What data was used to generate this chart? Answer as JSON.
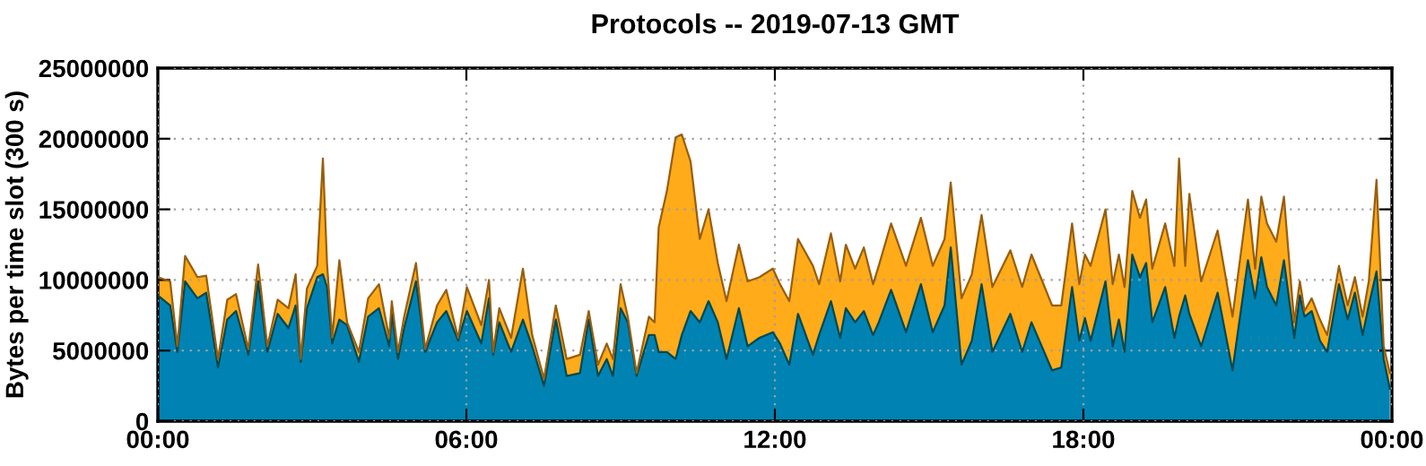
{
  "chart_data": {
    "type": "area",
    "stacked": true,
    "title": "Protocols -- 2019-07-13 GMT",
    "ylabel": "Bytes per time slot (300 s)",
    "x": [
      0,
      0.24,
      0.38,
      0.53,
      0.77,
      0.94,
      1.17,
      1.35,
      1.52,
      1.76,
      1.95,
      2.13,
      2.33,
      2.54,
      2.68,
      2.78,
      2.9,
      3.1,
      3.21,
      3.29,
      3.39,
      3.53,
      3.68,
      3.91,
      4.09,
      4.3,
      4.5,
      4.55,
      4.67,
      4.79,
      5.02,
      5.2,
      5.43,
      5.61,
      5.84,
      6.01,
      6.29,
      6.44,
      6.52,
      6.64,
      6.87,
      7.1,
      7.28,
      7.51,
      7.74,
      7.95,
      8.21,
      8.38,
      8.56,
      8.73,
      8.85,
      9.0,
      9.14,
      9.31,
      9.55,
      9.66,
      9.74,
      9.9,
      10.07,
      10.19,
      10.36,
      10.54,
      10.71,
      10.89,
      11.06,
      11.3,
      11.47,
      11.7,
      11.96,
      12.1,
      12.28,
      12.45,
      12.74,
      12.86,
      13.09,
      13.27,
      13.38,
      13.56,
      13.73,
      13.91,
      14.02,
      14.26,
      14.55,
      14.84,
      15.07,
      15.3,
      15.42,
      15.63,
      15.83,
      16.02,
      16.23,
      16.58,
      16.81,
      16.99,
      17.39,
      17.57,
      17.78,
      17.92,
      18.03,
      18.14,
      18.43,
      18.57,
      18.69,
      18.8,
      18.95,
      19.1,
      19.22,
      19.34,
      19.59,
      19.77,
      19.86,
      19.98,
      20.06,
      20.29,
      20.61,
      20.9,
      21.2,
      21.34,
      21.46,
      21.57,
      21.75,
      21.9,
      22.1,
      22.21,
      22.3,
      22.44,
      22.6,
      22.74,
      22.97,
      23.14,
      23.28,
      23.43,
      23.55,
      23.7,
      23.84,
      23.96
    ],
    "series": [
      {
        "color": "#0083b3",
        "values": [
          8900000,
          8200000,
          4900000,
          9900000,
          8700000,
          9100000,
          3800000,
          7200000,
          7800000,
          4700000,
          9900000,
          4900000,
          7600000,
          6600000,
          8200000,
          4200000,
          8000000,
          10200000,
          10400000,
          9500000,
          5500000,
          7200000,
          6800000,
          4200000,
          7400000,
          8000000,
          5300000,
          7600000,
          4400000,
          6600000,
          9900000,
          4900000,
          7000000,
          7800000,
          5700000,
          7800000,
          5500000,
          8700000,
          4700000,
          7000000,
          4900000,
          7200000,
          5300000,
          2500000,
          7200000,
          3200000,
          3400000,
          7200000,
          3200000,
          4400000,
          3200000,
          8000000,
          7000000,
          3200000,
          6100000,
          6100000,
          4900000,
          4900000,
          4400000,
          6100000,
          7800000,
          7000000,
          8500000,
          7000000,
          4400000,
          8000000,
          5300000,
          5900000,
          6300000,
          5500000,
          4000000,
          7600000,
          4700000,
          6100000,
          8500000,
          5900000,
          8000000,
          7000000,
          7800000,
          6100000,
          7000000,
          9300000,
          6300000,
          9700000,
          6300000,
          8200000,
          12300000,
          4000000,
          5700000,
          9700000,
          4900000,
          7600000,
          4900000,
          7000000,
          3600000,
          3800000,
          9500000,
          5700000,
          7300000,
          5700000,
          9900000,
          5300000,
          7200000,
          4900000,
          11800000,
          10200000,
          11200000,
          7000000,
          9500000,
          5900000,
          7400000,
          8900000,
          7600000,
          5300000,
          9100000,
          3600000,
          11400000,
          8700000,
          11600000,
          9500000,
          8200000,
          11400000,
          5900000,
          8900000,
          7400000,
          7800000,
          5700000,
          4900000,
          9700000,
          7200000,
          9100000,
          6100000,
          8200000,
          10600000,
          4400000,
          2300000
        ]
      },
      {
        "color": "#ffab1a",
        "values": [
          1300000,
          1700000,
          400000,
          1800000,
          1500000,
          1200000,
          600000,
          1400000,
          1200000,
          400000,
          1200000,
          400000,
          1000000,
          1400000,
          2200000,
          200000,
          1400000,
          800000,
          8200000,
          1700000,
          400000,
          4200000,
          200000,
          700000,
          1300000,
          1700000,
          600000,
          900000,
          500000,
          800000,
          1300000,
          200000,
          1200000,
          1500000,
          200000,
          1700000,
          1300000,
          1300000,
          200000,
          1000000,
          1000000,
          3600000,
          800000,
          500000,
          1000000,
          1200000,
          1300000,
          600000,
          800000,
          1100000,
          1200000,
          1700000,
          400000,
          200000,
          1300000,
          900000,
          8800000,
          11400000,
          15700000,
          14200000,
          10600000,
          5900000,
          6500000,
          4200000,
          4100000,
          4500000,
          4600000,
          4300000,
          4500000,
          4200000,
          4500000,
          5300000,
          6300000,
          3600000,
          4800000,
          4000000,
          4500000,
          3800000,
          4500000,
          3600000,
          4000000,
          4700000,
          4700000,
          4700000,
          4700000,
          4700000,
          4600000,
          4700000,
          4700000,
          4900000,
          4600000,
          4500000,
          4600000,
          4800000,
          4600000,
          4400000,
          4500000,
          4000000,
          4500000,
          5300000,
          5100000,
          4400000,
          4600000,
          4600000,
          4500000,
          4200000,
          4500000,
          3800000,
          4500000,
          5100000,
          11200000,
          2100000,
          8500000,
          4600000,
          4400000,
          3800000,
          4300000,
          2100000,
          4300000,
          4500000,
          4500000,
          4500000,
          1100000,
          1000000,
          400000,
          900000,
          1500000,
          1200000,
          1300000,
          1000000,
          1100000,
          1300000,
          1700000,
          6500000,
          900000,
          1100000
        ]
      }
    ],
    "xlim": [
      0,
      24
    ],
    "xticks": [
      {
        "value": 0,
        "label": "00:00"
      },
      {
        "value": 6,
        "label": "06:00"
      },
      {
        "value": 12,
        "label": "12:00"
      },
      {
        "value": 18,
        "label": "18:00"
      },
      {
        "value": 24,
        "label": "00:00"
      }
    ],
    "ylim": [
      0,
      25000000
    ],
    "yticks": [
      0,
      5000000,
      10000000,
      15000000,
      20000000,
      25000000
    ],
    "grid": true
  }
}
